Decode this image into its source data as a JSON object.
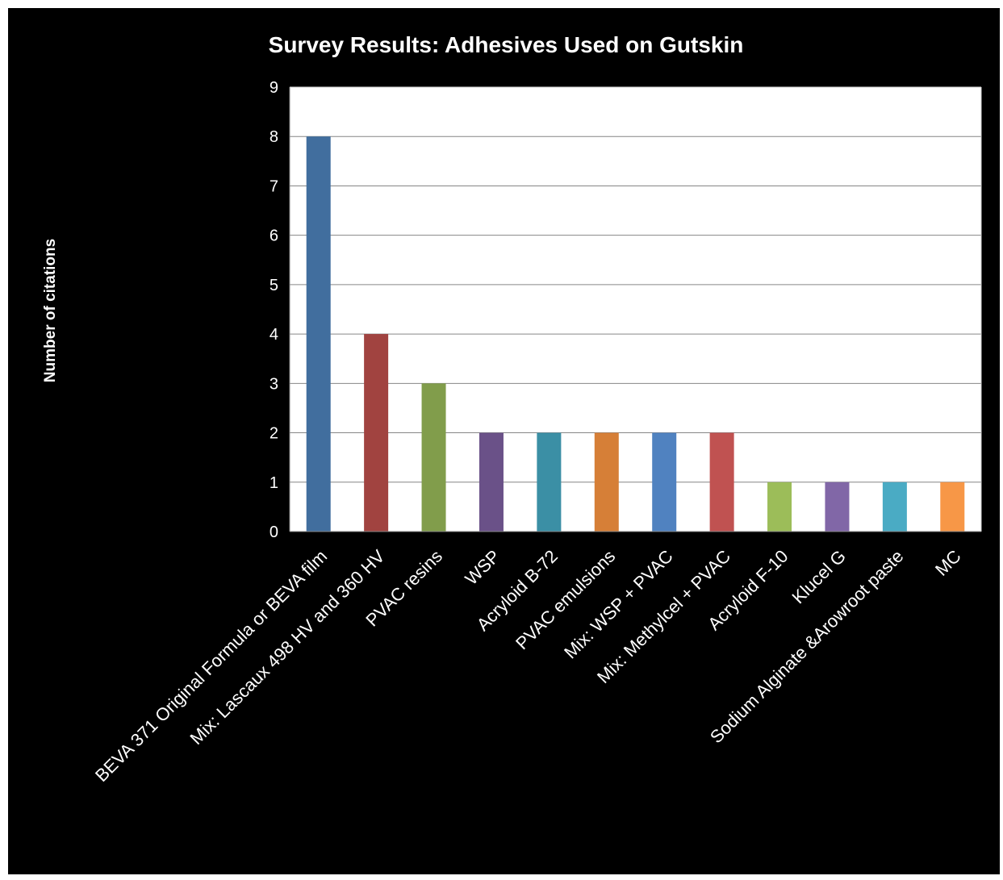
{
  "chart_data": {
    "type": "bar",
    "title": "Survey Results: Adhesives Used on Gutskin",
    "xlabel": "",
    "ylabel": "Number  of citations",
    "ylim": [
      0,
      9
    ],
    "yticks": [
      0,
      1,
      2,
      3,
      4,
      5,
      6,
      7,
      8,
      9
    ],
    "grid": true,
    "legend": "none",
    "categories": [
      "BEVA 371 Original Formula or BEVA film",
      "Mix: Lascaux 498 HV and 360 HV",
      "PVAC resins",
      "WSP",
      "Acryloid B-72",
      "PVAC emulsions",
      "Mix: WSP + PVAC",
      "Mix: Methylcel + PVAC",
      "Acryloid F-10",
      "Klucel G",
      "Sodium Alginate &Arowroot paste",
      "MC"
    ],
    "values": [
      8,
      4,
      3,
      2,
      2,
      2,
      2,
      2,
      1,
      1,
      1,
      1
    ],
    "colors": [
      "#416e9e",
      "#a14340",
      "#819d4b",
      "#6a5188",
      "#3b8fa5",
      "#d67f37",
      "#5082c0",
      "#c05251",
      "#9cbd59",
      "#8167a7",
      "#4aabc4",
      "#f79747"
    ],
    "background": "#000000",
    "plot_background": "#ffffff"
  }
}
